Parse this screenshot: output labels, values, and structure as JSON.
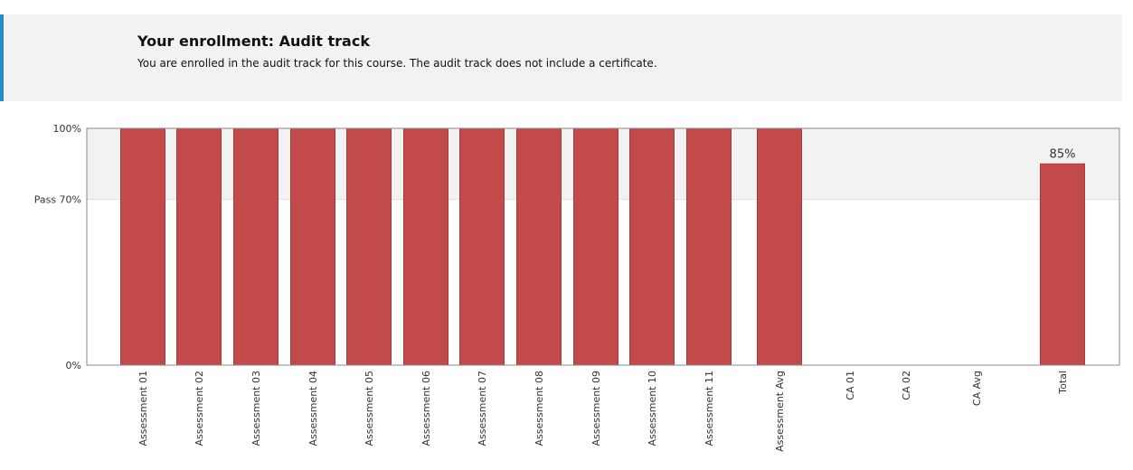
{
  "enrollment": {
    "title": "Your enrollment: Audit track",
    "message": "You are enrolled in the audit track for this course. The audit track does not include a certificate."
  },
  "colors": {
    "bar": "#c34a4b",
    "bar_border": "#a53b3c",
    "pass_band": "#f2f2f2",
    "accent": "#2a8ac8"
  },
  "chart_data": {
    "type": "bar",
    "categories": [
      "Assessment 01",
      "Assessment 02",
      "Assessment 03",
      "Assessment 04",
      "Assessment 05",
      "Assessment 06",
      "Assessment 07",
      "Assessment 08",
      "Assessment 09",
      "Assessment 10",
      "Assessment 11",
      "Assessment Avg",
      "CA 01",
      "CA 02",
      "CA Avg",
      "Total"
    ],
    "values": [
      100,
      100,
      100,
      100,
      100,
      100,
      100,
      100,
      100,
      100,
      100,
      100,
      0,
      0,
      0,
      85
    ],
    "data_labels": [
      "",
      "",
      "",
      "",
      "",
      "",
      "",
      "",
      "",
      "",
      "",
      "",
      "",
      "",
      "",
      "85%"
    ],
    "ylim": [
      0,
      100
    ],
    "yticks": [
      {
        "value": 100,
        "label": "100%"
      },
      {
        "value": 70,
        "label": "Pass 70%"
      },
      {
        "value": 0,
        "label": "0%"
      }
    ],
    "pass_threshold": 70,
    "grid": false,
    "legend": "none"
  }
}
